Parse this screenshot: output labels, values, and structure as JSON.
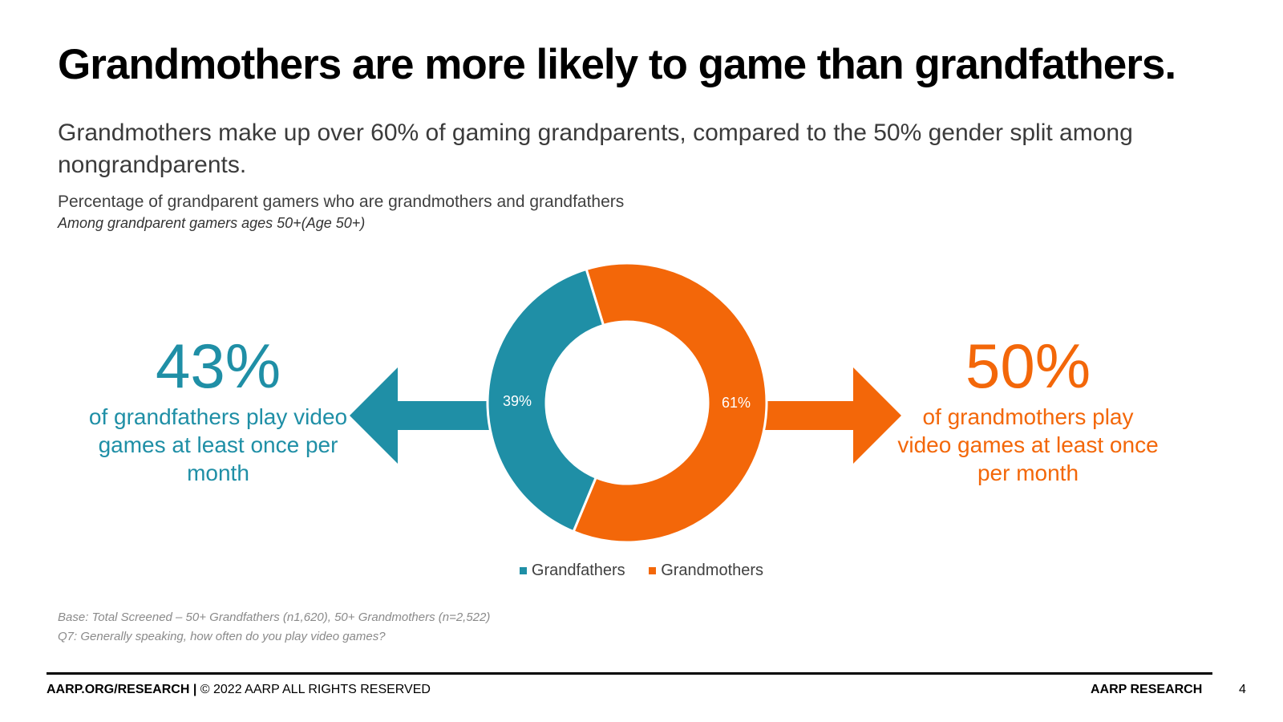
{
  "slide": {
    "title": "Grandmothers are more likely to game than grandfathers.",
    "subtitle": "Grandmothers make up over 60% of gaming grandparents, compared to the 50% gender split among nongrandparents."
  },
  "left_stat": {
    "value": "43%",
    "description": "of grandfathers play video games at least once per month",
    "color": "#1f8fa6"
  },
  "right_stat": {
    "value": "50%",
    "description": "of grandmothers play video games at least once per month",
    "color": "#f36709"
  },
  "chart_data": {
    "type": "pie",
    "style": "donut",
    "title": "Percentage of grandparent gamers who are grandmothers and grandfathers",
    "subtitle": "Among grandparent gamers ages 50+(Age 50+)",
    "categories": [
      "Grandfathers",
      "Grandmothers"
    ],
    "values": [
      39,
      61
    ],
    "data_labels": [
      "39%",
      "61%"
    ],
    "colors": [
      "#1f8fa6",
      "#f36709"
    ],
    "legend_position": "bottom"
  },
  "footnotes": {
    "base": "Base: Total Screened – 50+ Grandfathers (n1,620), 50+ Grandmothers (n=2,522)",
    "question": "Q7: Generally speaking, how often do you play video games?"
  },
  "footer": {
    "left_bold": "AARP.ORG/RESEARCH |",
    "left_text": " © 2022 AARP ALL RIGHTS RESERVED",
    "right": "AARP RESEARCH",
    "page_number": "4"
  }
}
